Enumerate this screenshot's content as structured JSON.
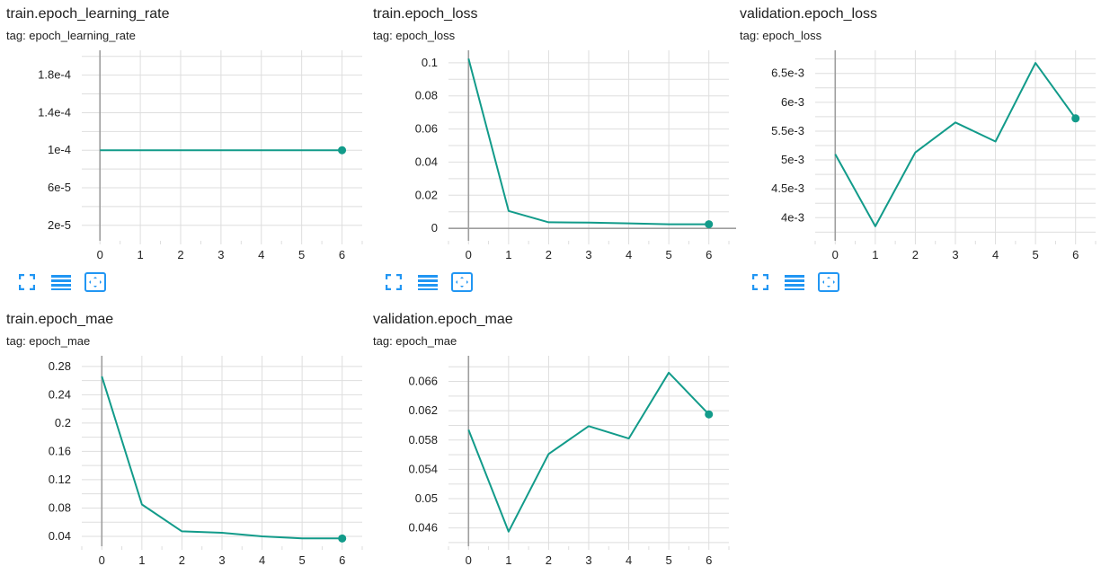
{
  "charts": [
    {
      "title": "train.epoch_learning_rate",
      "tag": "tag: epoch_learning_rate",
      "chart_data": {
        "type": "line",
        "x": [
          0,
          1,
          2,
          3,
          4,
          5,
          6
        ],
        "series": [
          {
            "values": [
              0.0001,
              0.0001,
              0.0001,
              0.0001,
              0.0001,
              0.0001,
              0.0001
            ]
          }
        ],
        "xlim": [
          -0.45,
          6.5
        ],
        "ylim": [
          3.5e-06,
          0.0002065
        ],
        "xticks": [
          0,
          1,
          2,
          3,
          4,
          5,
          6
        ],
        "yticks": [
          2e-05,
          6e-05,
          0.0001,
          0.00014,
          0.00018
        ],
        "ytick_labels": [
          "2e-5",
          "6e-5",
          "1e-4",
          "1.4e-4",
          "1.8e-4"
        ],
        "grid": true
      }
    },
    {
      "title": "train.epoch_loss",
      "tag": "tag: epoch_loss",
      "chart_data": {
        "type": "line",
        "x": [
          0,
          1,
          2,
          3,
          4,
          5,
          6
        ],
        "series": [
          {
            "values": [
              0.1025,
              0.0105,
              0.0037,
              0.0035,
              0.003,
              0.0025,
              0.0025
            ]
          }
        ],
        "xlim": [
          -0.5,
          6.5
        ],
        "ylim": [
          -0.0075,
          0.1075
        ],
        "xticks": [
          0,
          1,
          2,
          3,
          4,
          5,
          6
        ],
        "yticks": [
          0,
          0.02,
          0.04,
          0.06,
          0.08,
          0.1
        ],
        "ytick_labels": [
          "0",
          "0.02",
          "0.04",
          "0.06",
          "0.08",
          "0.1"
        ],
        "grid": true
      }
    },
    {
      "title": "validation.epoch_loss",
      "tag": "tag: epoch_loss",
      "chart_data": {
        "type": "line",
        "x": [
          0,
          1,
          2,
          3,
          4,
          5,
          6
        ],
        "series": [
          {
            "values": [
              0.0051,
              0.00385,
              0.00513,
              0.00565,
              0.00532,
              0.00668,
              0.00572
            ]
          }
        ],
        "xlim": [
          -0.5,
          6.5
        ],
        "ylim": [
          0.0036,
          0.0069
        ],
        "xticks": [
          0,
          1,
          2,
          3,
          4,
          5,
          6
        ],
        "yticks": [
          0.004,
          0.0045,
          0.005,
          0.0055,
          0.006,
          0.0065
        ],
        "ytick_labels": [
          "4e-3",
          "4.5e-3",
          "5e-3",
          "5.5e-3",
          "6e-3",
          "6.5e-3"
        ],
        "grid": true
      }
    },
    {
      "title": "train.epoch_mae",
      "tag": "tag: epoch_mae",
      "chart_data": {
        "type": "line",
        "x": [
          0,
          1,
          2,
          3,
          4,
          5,
          6
        ],
        "series": [
          {
            "values": [
              0.266,
              0.085,
              0.047,
              0.045,
              0.04,
              0.037,
              0.037
            ]
          }
        ],
        "xlim": [
          -0.5,
          6.5
        ],
        "ylim": [
          0.026,
          0.295
        ],
        "xticks": [
          0,
          1,
          2,
          3,
          4,
          5,
          6
        ],
        "yticks": [
          0.04,
          0.08,
          0.12,
          0.16,
          0.2,
          0.24,
          0.28
        ],
        "ytick_labels": [
          "0.04",
          "0.08",
          "0.12",
          "0.16",
          "0.2",
          "0.24",
          "0.28"
        ],
        "grid": true
      }
    },
    {
      "title": "validation.epoch_mae",
      "tag": "tag: epoch_mae",
      "chart_data": {
        "type": "line",
        "x": [
          0,
          1,
          2,
          3,
          4,
          5,
          6
        ],
        "series": [
          {
            "values": [
              0.0594,
              0.0455,
              0.0561,
              0.0599,
              0.0582,
              0.0672,
              0.0615
            ]
          }
        ],
        "xlim": [
          -0.5,
          6.5
        ],
        "ylim": [
          0.0435,
          0.0695
        ],
        "xticks": [
          0,
          1,
          2,
          3,
          4,
          5,
          6
        ],
        "yticks": [
          0.046,
          0.05,
          0.054,
          0.058,
          0.062,
          0.066
        ],
        "ytick_labels": [
          "0.046",
          "0.05",
          "0.054",
          "0.058",
          "0.062",
          "0.066"
        ],
        "grid": true
      }
    }
  ],
  "style": {
    "line_color": "#129b8a",
    "grid_color": "#dedede",
    "axis_color": "#9e9e9e",
    "toolbar_icon_color": "#2196f3"
  },
  "toolbar_icons": [
    "fullscreen-icon",
    "toggle-log-scale-icon",
    "fit-domain-icon"
  ]
}
